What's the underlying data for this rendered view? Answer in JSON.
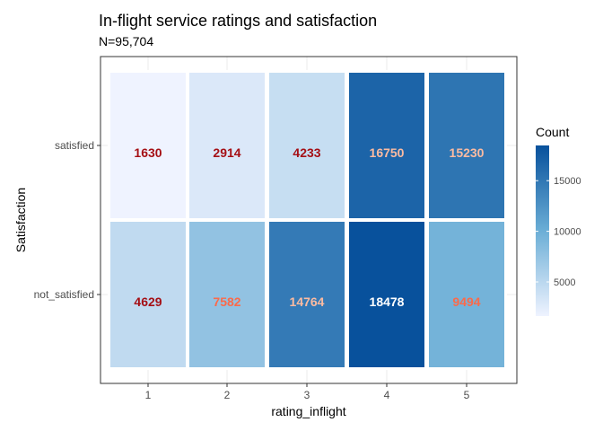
{
  "chart_data": {
    "type": "heatmap",
    "title": "In-flight service ratings and satisfaction",
    "subtitle": "N=95,704",
    "xlabel": "rating_inflight",
    "ylabel": "Satisfaction",
    "x_categories": [
      "1",
      "2",
      "3",
      "4",
      "5"
    ],
    "y_categories": [
      "satisfied",
      "not_satisfied"
    ],
    "values": [
      [
        1630,
        2914,
        4233,
        16750,
        15230
      ],
      [
        4629,
        7582,
        14764,
        18478,
        9494
      ]
    ],
    "legend": {
      "title": "Count",
      "ticks": [
        "5000",
        "10000",
        "15000"
      ],
      "tick_values": [
        5000,
        10000,
        15000
      ],
      "range": [
        1630,
        18478
      ],
      "placement": "right"
    },
    "colors": {
      "low": "#eff3ff",
      "high": "#08519c",
      "label_dark": "#a50f15",
      "label_mid": "#fb6a4a",
      "label_light": "#fcbba1",
      "label_white": "#ffffff",
      "panel_border": "#333333",
      "grid": "#ebebeb"
    },
    "grid": true
  }
}
